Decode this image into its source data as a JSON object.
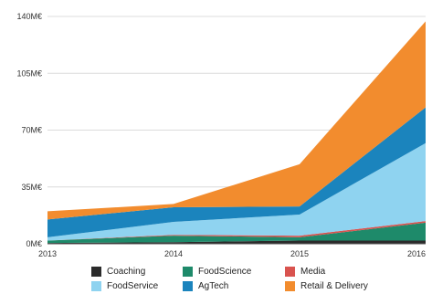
{
  "chart_data": {
    "type": "area",
    "stacked": true,
    "x": [
      "2013",
      "2014",
      "2015",
      "2016"
    ],
    "y_ticks": [
      "0M€",
      "35M€",
      "70M€",
      "105M€",
      "140M€"
    ],
    "ylim": [
      0,
      140
    ],
    "grid": true,
    "legend_position": "bottom",
    "series": [
      {
        "name": "Coaching",
        "color": "#2b2b2b",
        "values": [
          0.5,
          1,
          2,
          2
        ]
      },
      {
        "name": "FoodScience",
        "color": "#1e8a6a",
        "values": [
          1.5,
          4,
          2,
          11
        ]
      },
      {
        "name": "Media",
        "color": "#d9534f",
        "values": [
          0,
          0.5,
          1,
          1
        ]
      },
      {
        "name": "FoodService",
        "color": "#8fd3f0",
        "values": [
          2,
          8,
          13,
          48
        ]
      },
      {
        "name": "AgTech",
        "color": "#1b84bd",
        "values": [
          11,
          9,
          5,
          22
        ]
      },
      {
        "name": "Retail & Delivery",
        "color": "#f28c2e",
        "values": [
          5,
          2,
          26,
          53
        ]
      }
    ]
  }
}
